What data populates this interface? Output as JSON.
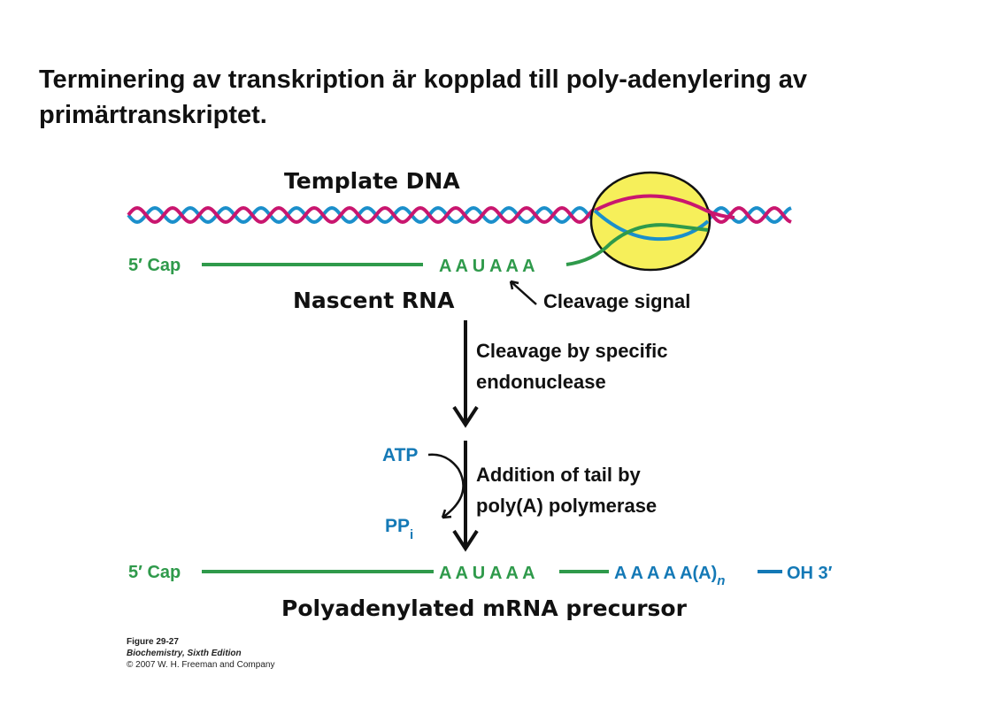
{
  "title": "Terminering av transkription är kopplad till poly-adenylering av primärtranskriptet.",
  "diagram": {
    "template_dna": "Template DNA",
    "cap_top": "5′ Cap",
    "signal_top": "A A U A A A",
    "nascent_rna": "Nascent RNA",
    "cleavage_signal": "Cleavage signal",
    "step1": [
      "Cleavage by specific",
      "endonuclease"
    ],
    "atp": "ATP",
    "ppi": "PP",
    "ppi_sub": "i",
    "step2": [
      "Addition of tail by",
      "poly(A) polymerase"
    ],
    "cap_bottom": "5′ Cap",
    "signal_bottom": "A A U A A A",
    "tail": "A A A A A(A)",
    "tail_sub": "n",
    "oh3": "OH 3′",
    "product": "Polyadenylated mRNA precursor"
  },
  "caption": {
    "figure": "Figure 29-27",
    "book": "Biochemistry, Sixth Edition",
    "copyright": "© 2007 W. H. Freeman and Company"
  },
  "colors": {
    "magenta": "#c9166f",
    "blue": "#1b8fcb",
    "green": "#2f9a4b",
    "text_blue": "#1479b6",
    "polymerase": "#f6ef5a"
  }
}
